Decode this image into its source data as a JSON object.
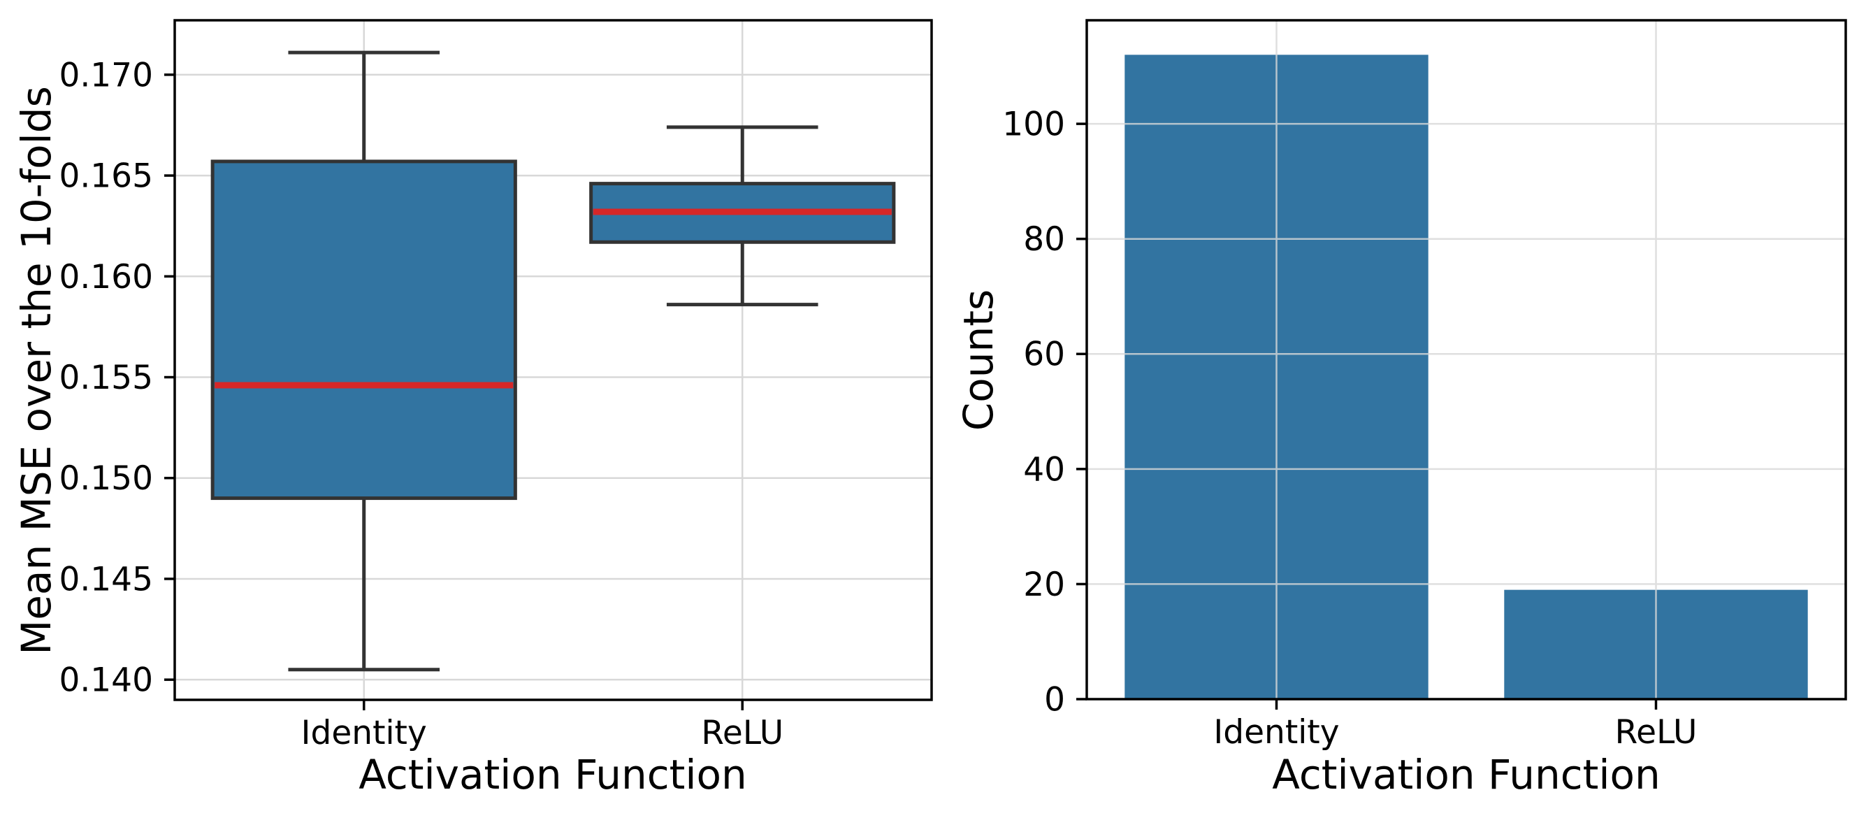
{
  "style": {
    "background": "#ffffff",
    "box_fill": "#3274a1",
    "bar_fill": "#3274a1",
    "median_color": "#d62728",
    "box_edge_color": "#333333",
    "whisker_color": "#333333",
    "grid_color": "#d8d8d8",
    "spine_color": "#000000",
    "text_color": "#000000"
  },
  "chart_data": [
    {
      "type": "boxplot",
      "title": "",
      "xlabel": "Activation Function",
      "ylabel": "Mean MSE over the 10-folds",
      "categories": [
        "Identity",
        "ReLU"
      ],
      "ylim": [
        0.139,
        0.1727
      ],
      "yticks": [
        0.14,
        0.145,
        0.15,
        0.155,
        0.16,
        0.165,
        0.17
      ],
      "ytick_labels": [
        "0.140",
        "0.145",
        "0.150",
        "0.155",
        "0.160",
        "0.165",
        "0.170"
      ],
      "grid": true,
      "legend": false,
      "boxes": [
        {
          "category": "Identity",
          "whisker_low": 0.1405,
          "q1": 0.149,
          "median": 0.1546,
          "q3": 0.1657,
          "whisker_high": 0.1711
        },
        {
          "category": "ReLU",
          "whisker_low": 0.1586,
          "q1": 0.1617,
          "median": 0.1632,
          "q3": 0.1646,
          "whisker_high": 0.1674
        }
      ]
    },
    {
      "type": "bar",
      "title": "",
      "xlabel": "Activation Function",
      "ylabel": "Counts",
      "categories": [
        "Identity",
        "ReLU"
      ],
      "values": [
        112,
        19
      ],
      "ylim": [
        0,
        118
      ],
      "yticks": [
        0,
        20,
        40,
        60,
        80,
        100
      ],
      "ytick_labels": [
        "0",
        "20",
        "40",
        "60",
        "80",
        "100"
      ],
      "grid": true,
      "legend": false
    }
  ]
}
